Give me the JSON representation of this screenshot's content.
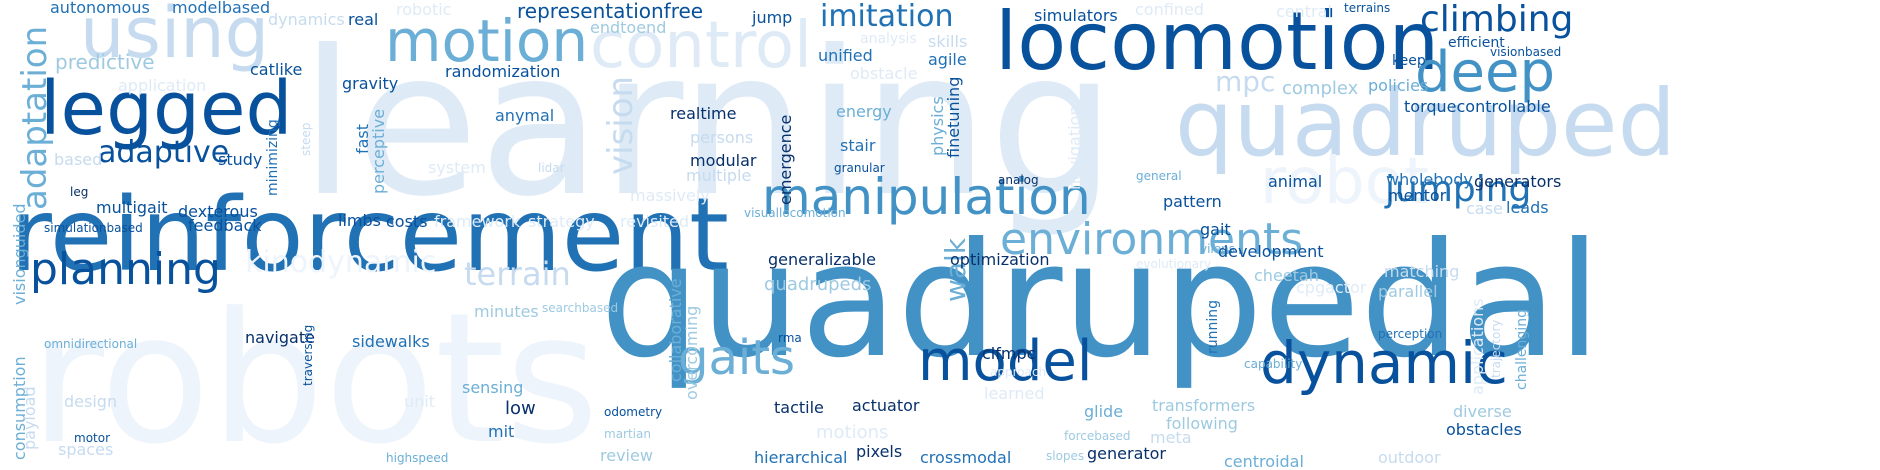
{
  "words": [
    "learning",
    "robots",
    "reinforcement",
    "quadrupedal",
    "quadruped",
    "locomotion",
    "control",
    "robot",
    "using",
    "legged",
    "motion",
    "deep",
    "model",
    "dynamic",
    "manipulation",
    "planning",
    "gaits",
    "environments",
    "jumping",
    "climbing",
    "imitation",
    "adaptation",
    "kinodynamic",
    "adaptive",
    "vision",
    "terrain",
    "walk",
    "mpc",
    "representationfree",
    "predictive",
    "complex",
    "policies",
    "gravity",
    "randomization",
    "anymal",
    "realtime",
    "energy",
    "persons",
    "modular",
    "multiple",
    "massively",
    "stair",
    "system",
    "framework",
    "strategy",
    "feedback",
    "dexterous",
    "multigait",
    "study",
    "minimizing",
    "catlike",
    "autonomous",
    "modelbased",
    "dynamics",
    "real",
    "robotic",
    "endtoend",
    "jump",
    "simulators",
    "confined",
    "central",
    "terrains",
    "keep",
    "efficient",
    "visionbased",
    "torquecontrollable",
    "unified",
    "agile",
    "skills",
    "analysis",
    "obstacle",
    "application",
    "based",
    "lidar",
    "leg",
    "simulationbased",
    "limbs",
    "costs",
    "revisited",
    "visuallocomotion",
    "emergence",
    "granular",
    "physics",
    "finetuning",
    "fast",
    "perceptive",
    "steep",
    "navigation",
    "analog",
    "general",
    "wholebody",
    "animal",
    "mentor",
    "generators",
    "pattern",
    "gait",
    "vilens",
    "case",
    "leads",
    "development",
    "evolutionary",
    "generalizable",
    "optimization",
    "quadrupeds",
    "cheetah",
    "matching",
    "parallel",
    "cpgactor",
    "minutes",
    "searchbased",
    "navigate",
    "sidewalks",
    "clfmpc",
    "rma",
    "running",
    "capability",
    "approach",
    "perception",
    "challenging",
    "trajectory",
    "applications",
    "diverse",
    "obstacles",
    "transformers",
    "following",
    "meta",
    "glide",
    "learned",
    "actuator",
    "tactile",
    "odometry",
    "martian",
    "review",
    "hierarchical",
    "motions",
    "pixels",
    "crossmodal",
    "slopes",
    "forcebased",
    "generator",
    "centroidal",
    "outdoor",
    "sensing",
    "low",
    "mit",
    "unit",
    "overcoming",
    "collaborative",
    "design",
    "spaces",
    "motor",
    "highspeed",
    "traversing",
    "omnidirectional",
    "visionguided",
    "consumption",
    "payload"
  ],
  "colors": {
    "background": "#ffffff",
    "darkest": "#08306b",
    "dark": "#08519c",
    "mid_dark": "#2171b5",
    "mid": "#4292c6",
    "mid_light": "#6baed6",
    "light": "#9ecae1",
    "lighter": "#c6dbef",
    "lightest": "#deebf7",
    "palest": "#eef4fb"
  }
}
